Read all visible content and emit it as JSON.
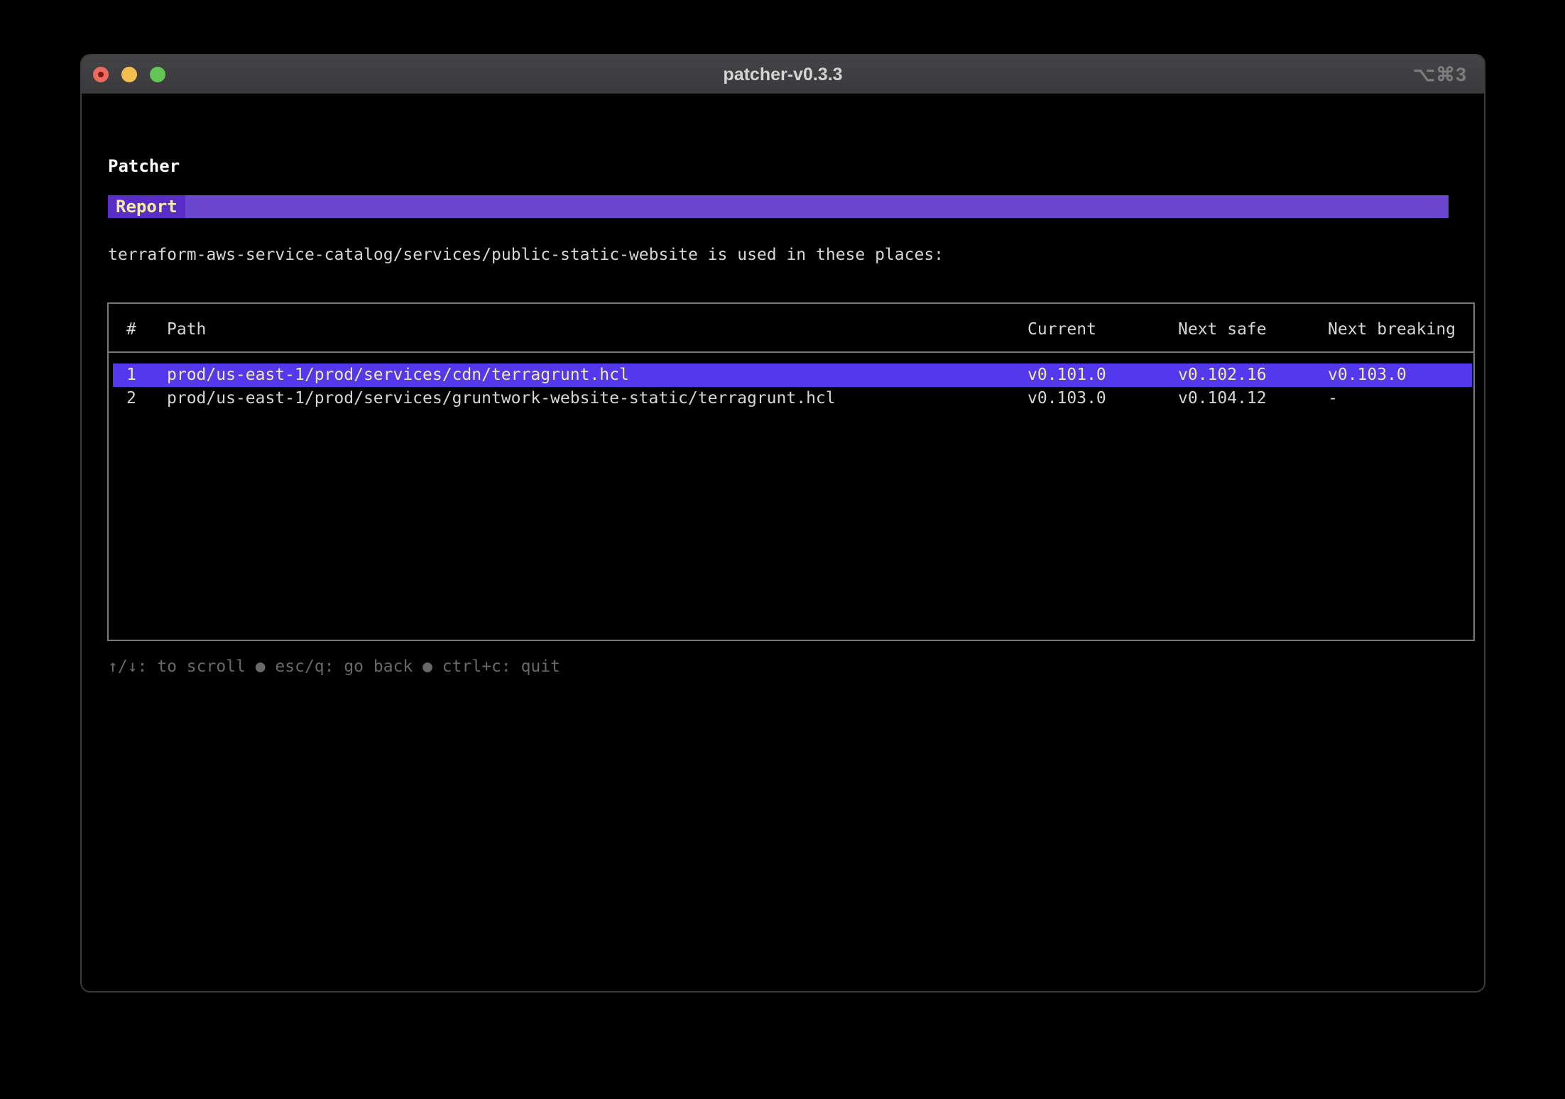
{
  "window": {
    "title": "patcher-v0.3.3",
    "shortcut": "⌥⌘3"
  },
  "app": {
    "heading": "Patcher",
    "tab": "Report",
    "description": "terraform-aws-service-catalog/services/public-static-website is used in these places:",
    "table": {
      "headers": [
        "#",
        "Path",
        "Current",
        "Next safe",
        "Next breaking"
      ],
      "rows": [
        {
          "num": "1",
          "path": "prod/us-east-1/prod/services/cdn/terragrunt.hcl",
          "current": "v0.101.0",
          "next_safe": "v0.102.16",
          "next_breaking": "v0.103.0",
          "selected": true
        },
        {
          "num": "2",
          "path": "prod/us-east-1/prod/services/gruntwork-website-static/terragrunt.hcl",
          "current": "v0.103.0",
          "next_safe": "v0.104.12",
          "next_breaking": "-",
          "selected": false
        }
      ]
    },
    "footer": "↑/↓: to scroll ● esc/q: go back ● ctrl+c: quit"
  },
  "colors": {
    "tab_bar_purple": "#6B46CE",
    "tab_label_purple": "#5A2DC8",
    "selection_purple": "#5438EE",
    "selection_text_yellow": "#F0EBA6",
    "table_border_gray": "#787878",
    "footer_gray": "#696969",
    "traffic_red": "#EC6A5F",
    "traffic_yellow": "#F4BE4E",
    "traffic_green": "#62C554"
  }
}
